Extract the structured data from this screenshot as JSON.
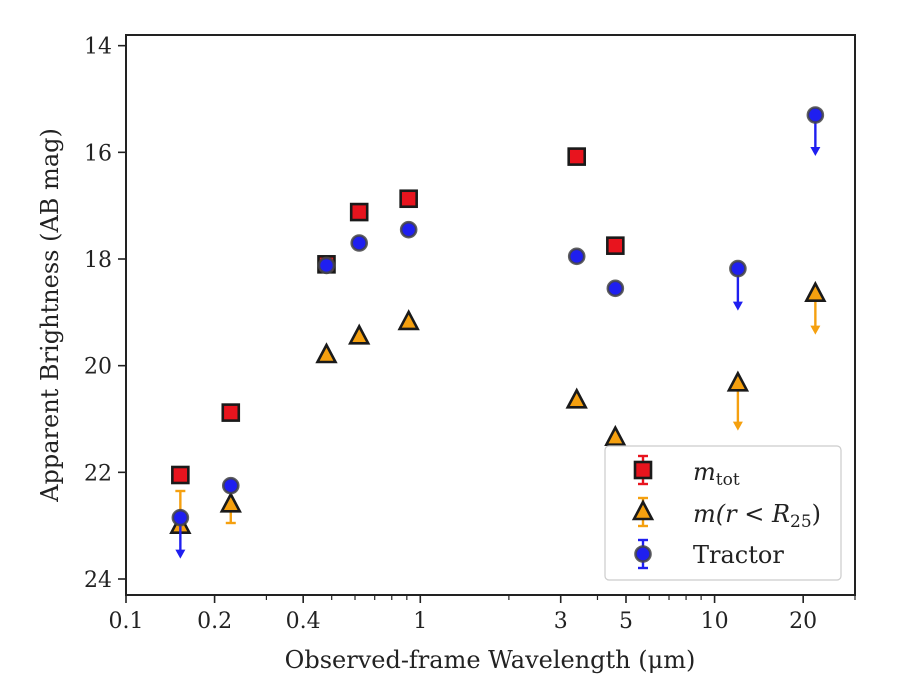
{
  "chart_data": {
    "type": "scatter",
    "xlabel": "Observed-frame Wavelength (μm)",
    "ylabel": "Apparent Brightness (AB mag)",
    "x_scale": "log",
    "xlim": [
      0.1,
      30
    ],
    "ylim": [
      24.3,
      13.8
    ],
    "y_inverted": true,
    "x_ticks": [
      {
        "value": 0.1,
        "label": "0.1"
      },
      {
        "value": 0.2,
        "label": "0.2"
      },
      {
        "value": 0.4,
        "label": "0.4"
      },
      {
        "value": 1,
        "label": "1"
      },
      {
        "value": 3,
        "label": "3"
      },
      {
        "value": 5,
        "label": "5"
      },
      {
        "value": 10,
        "label": "10"
      },
      {
        "value": 20,
        "label": "20"
      }
    ],
    "y_ticks": [
      {
        "value": 14,
        "label": "14"
      },
      {
        "value": 16,
        "label": "16"
      },
      {
        "value": 18,
        "label": "18"
      },
      {
        "value": 20,
        "label": "20"
      },
      {
        "value": 22,
        "label": "22"
      },
      {
        "value": 24,
        "label": "24"
      }
    ],
    "grid": false,
    "legend_position": "lower-right",
    "series": [
      {
        "name": "m_tot",
        "legend_label_main": "m",
        "legend_label_sub": "tot",
        "marker": "square",
        "color": "#e8141e",
        "points": [
          {
            "x": 0.153,
            "y": 22.05
          },
          {
            "x": 0.227,
            "y": 20.88
          },
          {
            "x": 0.48,
            "y": 18.1
          },
          {
            "x": 0.62,
            "y": 17.12
          },
          {
            "x": 0.913,
            "y": 16.87
          },
          {
            "x": 3.4,
            "y": 16.08
          },
          {
            "x": 4.6,
            "y": 17.75
          }
        ]
      },
      {
        "name": "m(r<R25)",
        "legend_label_main": "m(r < R",
        "legend_label_sub": "25",
        "legend_label_end": ")",
        "marker": "triangle",
        "color": "#f5a00f",
        "points": [
          {
            "x": 0.153,
            "y": 23.0,
            "err_low": 22.35,
            "err_high": 23.0
          },
          {
            "x": 0.227,
            "y": 22.6,
            "err_low": 22.35,
            "err_high": 22.95
          },
          {
            "x": 0.48,
            "y": 19.8
          },
          {
            "x": 0.62,
            "y": 19.45
          },
          {
            "x": 0.913,
            "y": 19.18
          },
          {
            "x": 3.4,
            "y": 20.65
          },
          {
            "x": 4.6,
            "y": 21.35
          },
          {
            "x": 12.0,
            "y": 20.33,
            "upper_limit": 21.2
          },
          {
            "x": 22.0,
            "y": 18.65,
            "upper_limit": 19.4
          }
        ]
      },
      {
        "name": "Tractor",
        "marker": "circle",
        "color": "#1f1ff0",
        "points": [
          {
            "x": 0.153,
            "y": 22.85,
            "upper_limit": 23.6
          },
          {
            "x": 0.227,
            "y": 22.25
          },
          {
            "x": 0.48,
            "y": 18.12
          },
          {
            "x": 0.62,
            "y": 17.7
          },
          {
            "x": 0.913,
            "y": 17.45
          },
          {
            "x": 3.4,
            "y": 17.95
          },
          {
            "x": 4.6,
            "y": 18.55
          },
          {
            "x": 12.0,
            "y": 18.18,
            "upper_limit": 18.95
          },
          {
            "x": 22.0,
            "y": 15.3,
            "upper_limit": 16.05
          }
        ]
      }
    ]
  }
}
